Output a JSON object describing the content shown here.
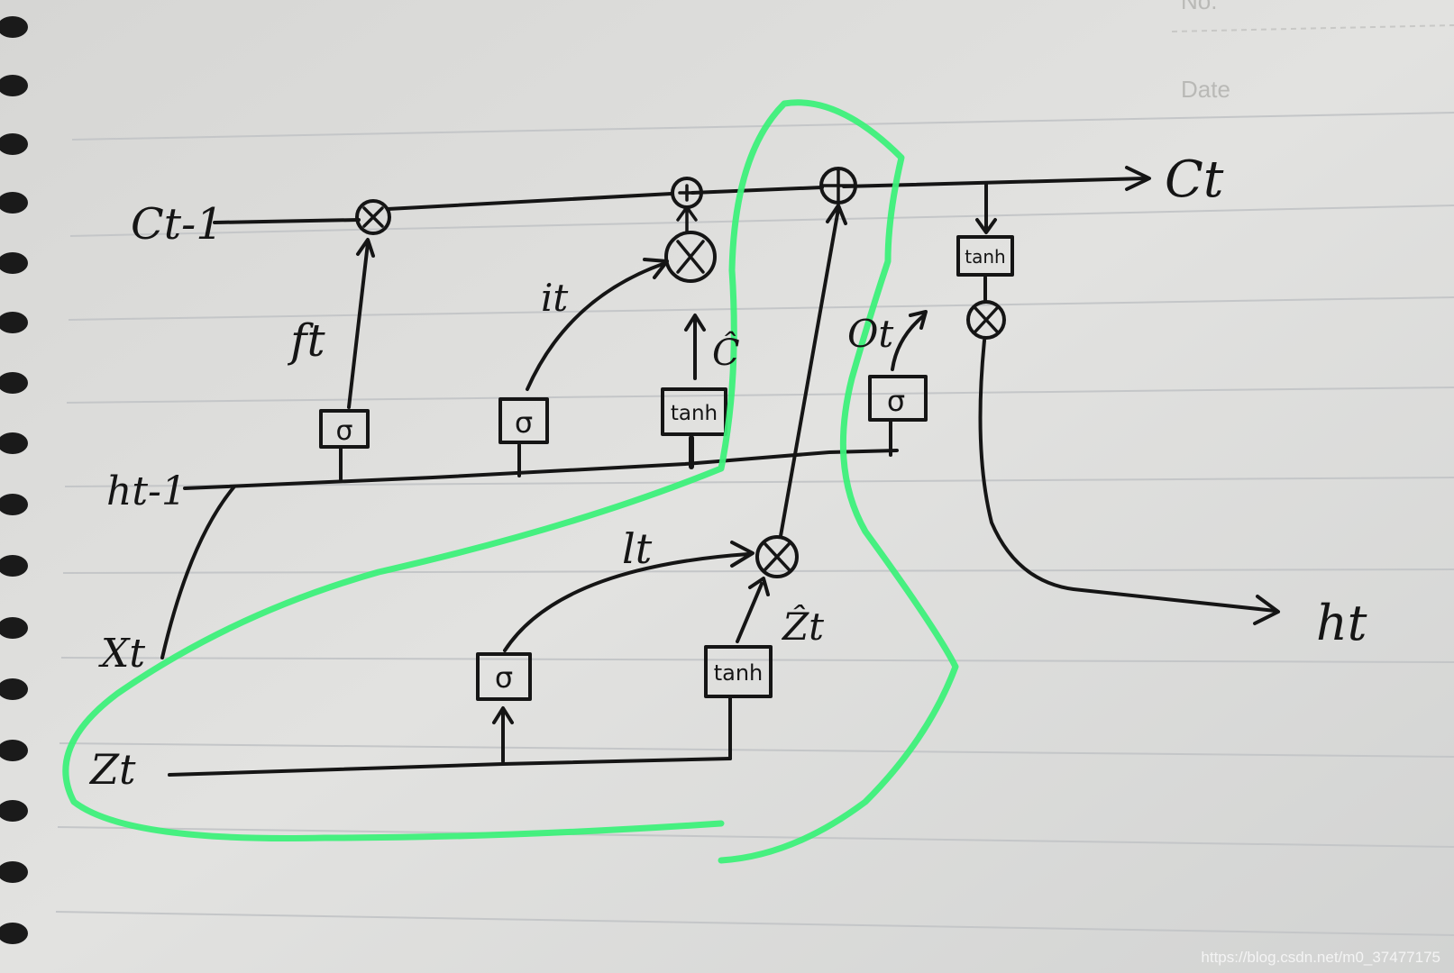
{
  "paper": {
    "no_label": "No.",
    "date_label": "Date",
    "colors": {
      "paper": "#dcdcda",
      "ink": "#151515",
      "highlight": "#3df07a",
      "rule": "#c4c6c8"
    }
  },
  "labels": {
    "c_prev": "Ct-1",
    "c_next": "Ct",
    "h_prev": "ht-1",
    "h_next": "ht",
    "x_t": "Xt",
    "z_t": "Zt",
    "f_t": "ft",
    "i_t": "it",
    "o_t": "Ot",
    "c_hat": "Ĉ",
    "l_t": "lt",
    "z_hat": "Ẑt"
  },
  "gates": {
    "sigma": "σ",
    "tanh": "tanh"
  },
  "operators": {
    "multiply": "⊗",
    "add": "⊕"
  },
  "watermark": "https://blog.csdn.net/m0_37477175"
}
